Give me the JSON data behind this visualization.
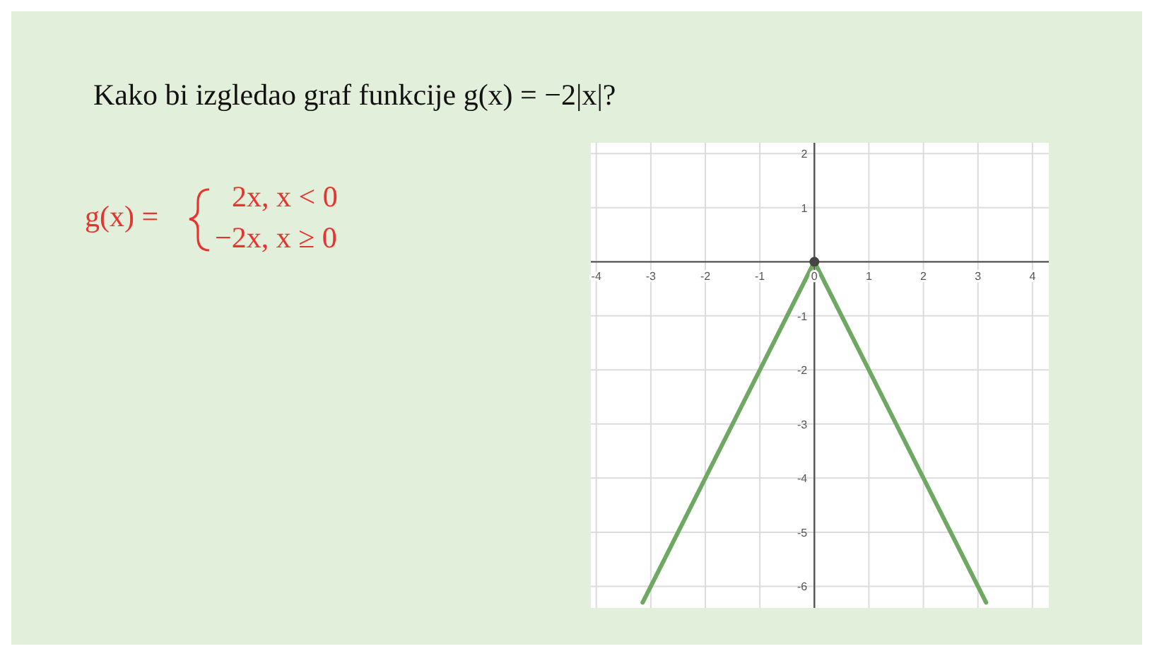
{
  "chart_data": {
    "type": "line",
    "title": "Kako bi izgledao graf funkcije g(x) = −2|x|?",
    "annotations": [
      "g(x) =",
      "2x,  x < 0",
      "−2x,  x ≥ 0"
    ],
    "xlim": [
      -4.1,
      4.3
    ],
    "ylim": [
      -6.4,
      2.2
    ],
    "xticks": [
      -4,
      -3,
      -2,
      -1,
      0,
      1,
      2,
      3,
      4
    ],
    "yticks": [
      -6,
      -5,
      -4,
      -3,
      -2,
      -1,
      {
        "value": 0,
        "label": null
      },
      1,
      2
    ],
    "grid": true,
    "series": [
      {
        "color": "#6fa862",
        "x": [
          -3.15,
          0,
          3.15
        ],
        "values": [
          -6.3,
          0,
          -6.3
        ],
        "marker": "none",
        "line_style": "solid"
      },
      {
        "type": "scatter",
        "color": "#444444",
        "x": [
          0
        ],
        "values": [
          0
        ],
        "marker": "circle"
      }
    ]
  }
}
